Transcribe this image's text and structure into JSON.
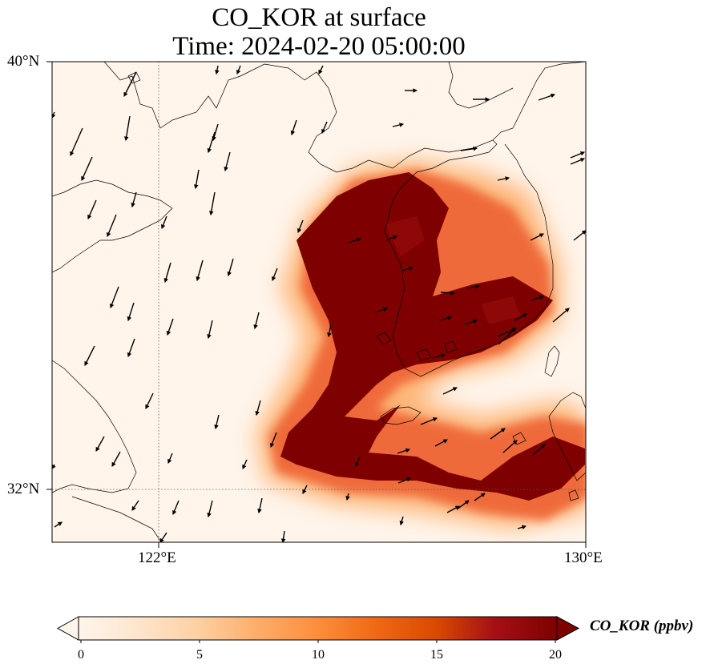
{
  "title": {
    "line1": "CO_KOR at surface",
    "line2": "Time: 2024-02-20 05:00:00"
  },
  "axes": {
    "lat_ticks": [
      "40°N",
      "32°N"
    ],
    "lon_ticks": [
      "122°E",
      "130°E"
    ],
    "lat_range": [
      31,
      40
    ],
    "lon_range": [
      120,
      130
    ]
  },
  "colorbar": {
    "label": "CO_KOR (ppbv)",
    "ticks": [
      "0",
      "5",
      "10",
      "15",
      "20"
    ],
    "range": [
      0,
      20
    ],
    "extend": "both",
    "colormap": [
      "#fff5eb",
      "#fee6ce",
      "#fdd0a2",
      "#fdae6b",
      "#fd8d3c",
      "#f16913",
      "#d94801",
      "#a50f15",
      "#7f0000"
    ]
  },
  "colors": {
    "max_plume": "#7f0000",
    "background": "#fff5eb",
    "coastline": "#000000"
  }
}
